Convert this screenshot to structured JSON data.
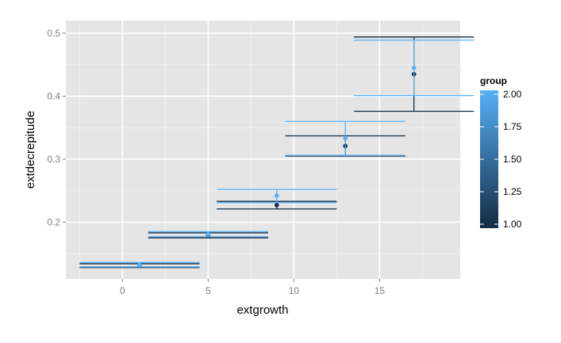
{
  "chart_data": {
    "type": "errorbar",
    "xlabel": "extgrowth",
    "ylabel": "extdecrepitude",
    "xlim": [
      -3.3,
      19.7
    ],
    "ylim": [
      0.11,
      0.52
    ],
    "x_ticks": [
      0,
      5,
      10,
      15
    ],
    "x_tick_labels": [
      "0",
      "5",
      "10",
      "15"
    ],
    "y_ticks": [
      0.2,
      0.3,
      0.4,
      0.5
    ],
    "y_tick_labels": [
      "0.2",
      "0.3",
      "0.4",
      "0.5"
    ],
    "grid": true,
    "legend": {
      "title": "group",
      "type": "colorbar",
      "position": "right",
      "range": [
        1.0,
        2.0
      ],
      "ticks": [
        2.0,
        1.75,
        1.5,
        1.25,
        1.0
      ],
      "tick_labels": [
        "2.00",
        "1.75",
        "1.50",
        "1.25",
        "1.00"
      ],
      "color_low": "#132b43",
      "color_high": "#56b1f7"
    },
    "bar_halfwidth": 3.5,
    "series": [
      {
        "group": 1.0,
        "color": "#132b43",
        "points": [
          {
            "x": 1,
            "y": 0.131,
            "ymin": 0.128,
            "ymax": 0.134
          },
          {
            "x": 5,
            "y": 0.179,
            "ymin": 0.175,
            "ymax": 0.183
          },
          {
            "x": 9,
            "y": 0.227,
            "ymin": 0.221,
            "ymax": 0.233
          },
          {
            "x": 13,
            "y": 0.321,
            "ymin": 0.305,
            "ymax": 0.337
          },
          {
            "x": 17,
            "y": 0.435,
            "ymin": 0.376,
            "ymax": 0.494
          }
        ]
      },
      {
        "group": 2.0,
        "color": "#56b1f7",
        "points": [
          {
            "x": 1,
            "y": 0.132,
            "ymin": 0.129,
            "ymax": 0.136
          },
          {
            "x": 5,
            "y": 0.181,
            "ymin": 0.177,
            "ymax": 0.185
          },
          {
            "x": 9,
            "y": 0.242,
            "ymin": 0.231,
            "ymax": 0.252
          },
          {
            "x": 13,
            "y": 0.333,
            "ymin": 0.306,
            "ymax": 0.36
          },
          {
            "x": 17,
            "y": 0.445,
            "ymin": 0.401,
            "ymax": 0.489
          }
        ]
      }
    ]
  }
}
